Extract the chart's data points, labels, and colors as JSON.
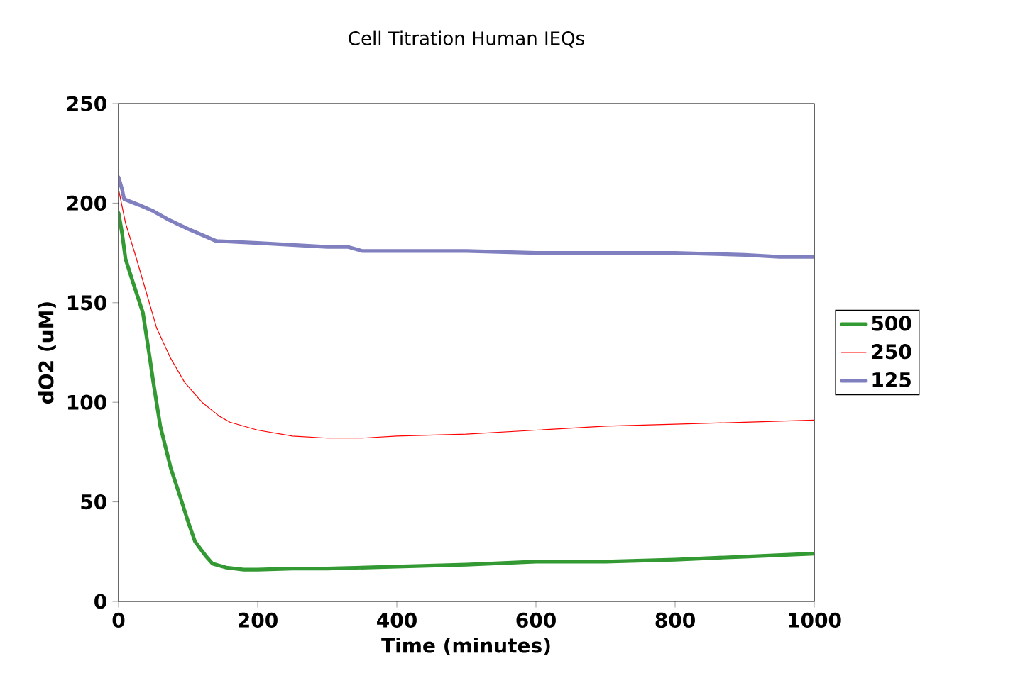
{
  "chart_data": {
    "type": "line",
    "title": "Cell Titration Human IEQs",
    "xlabel": "Time (minutes)",
    "ylabel": "dO2 (uM)",
    "xlim": [
      0,
      1000
    ],
    "xticks": [
      0,
      200,
      400,
      600,
      800,
      1000
    ],
    "ylim": [
      0,
      250
    ],
    "yticks": [
      0,
      50,
      100,
      150,
      200,
      250
    ],
    "grid": false,
    "legend": "right",
    "marker": "none",
    "series": [
      {
        "name": "500",
        "color": "#339933",
        "line_style": "solid",
        "x": [
          0,
          5,
          10,
          20,
          35,
          45,
          50,
          60,
          75,
          90,
          100,
          110,
          125,
          135,
          155,
          180,
          200,
          250,
          300,
          400,
          500,
          600,
          700,
          800,
          900,
          1000
        ],
        "values": [
          195,
          185,
          172,
          161,
          145,
          122,
          110,
          88,
          67,
          51,
          40,
          30,
          23,
          19,
          17,
          16,
          16,
          16.5,
          16.5,
          17.5,
          18.5,
          20,
          20,
          21,
          22.5,
          24
        ]
      },
      {
        "name": "250",
        "color": "#ff0000",
        "line_style": "solid",
        "x": [
          0,
          10,
          25,
          40,
          55,
          75,
          95,
          120,
          145,
          160,
          200,
          250,
          300,
          350,
          400,
          500,
          600,
          700,
          800,
          900,
          1000
        ],
        "values": [
          207,
          190,
          173,
          155,
          137,
          122,
          110,
          100,
          93,
          90,
          86,
          83,
          82,
          82,
          83,
          84,
          86,
          88,
          89,
          90,
          91
        ]
      },
      {
        "name": "125",
        "color": "#8080c0",
        "line_style": "solid",
        "x": [
          0,
          5,
          8,
          30,
          50,
          70,
          100,
          140,
          200,
          250,
          300,
          330,
          350,
          400,
          500,
          600,
          700,
          800,
          900,
          950,
          1000
        ],
        "values": [
          213,
          207,
          202,
          199,
          196,
          192,
          187,
          181,
          180,
          179,
          178,
          178,
          176,
          176,
          176,
          175,
          175,
          175,
          174,
          173,
          173
        ]
      }
    ]
  }
}
